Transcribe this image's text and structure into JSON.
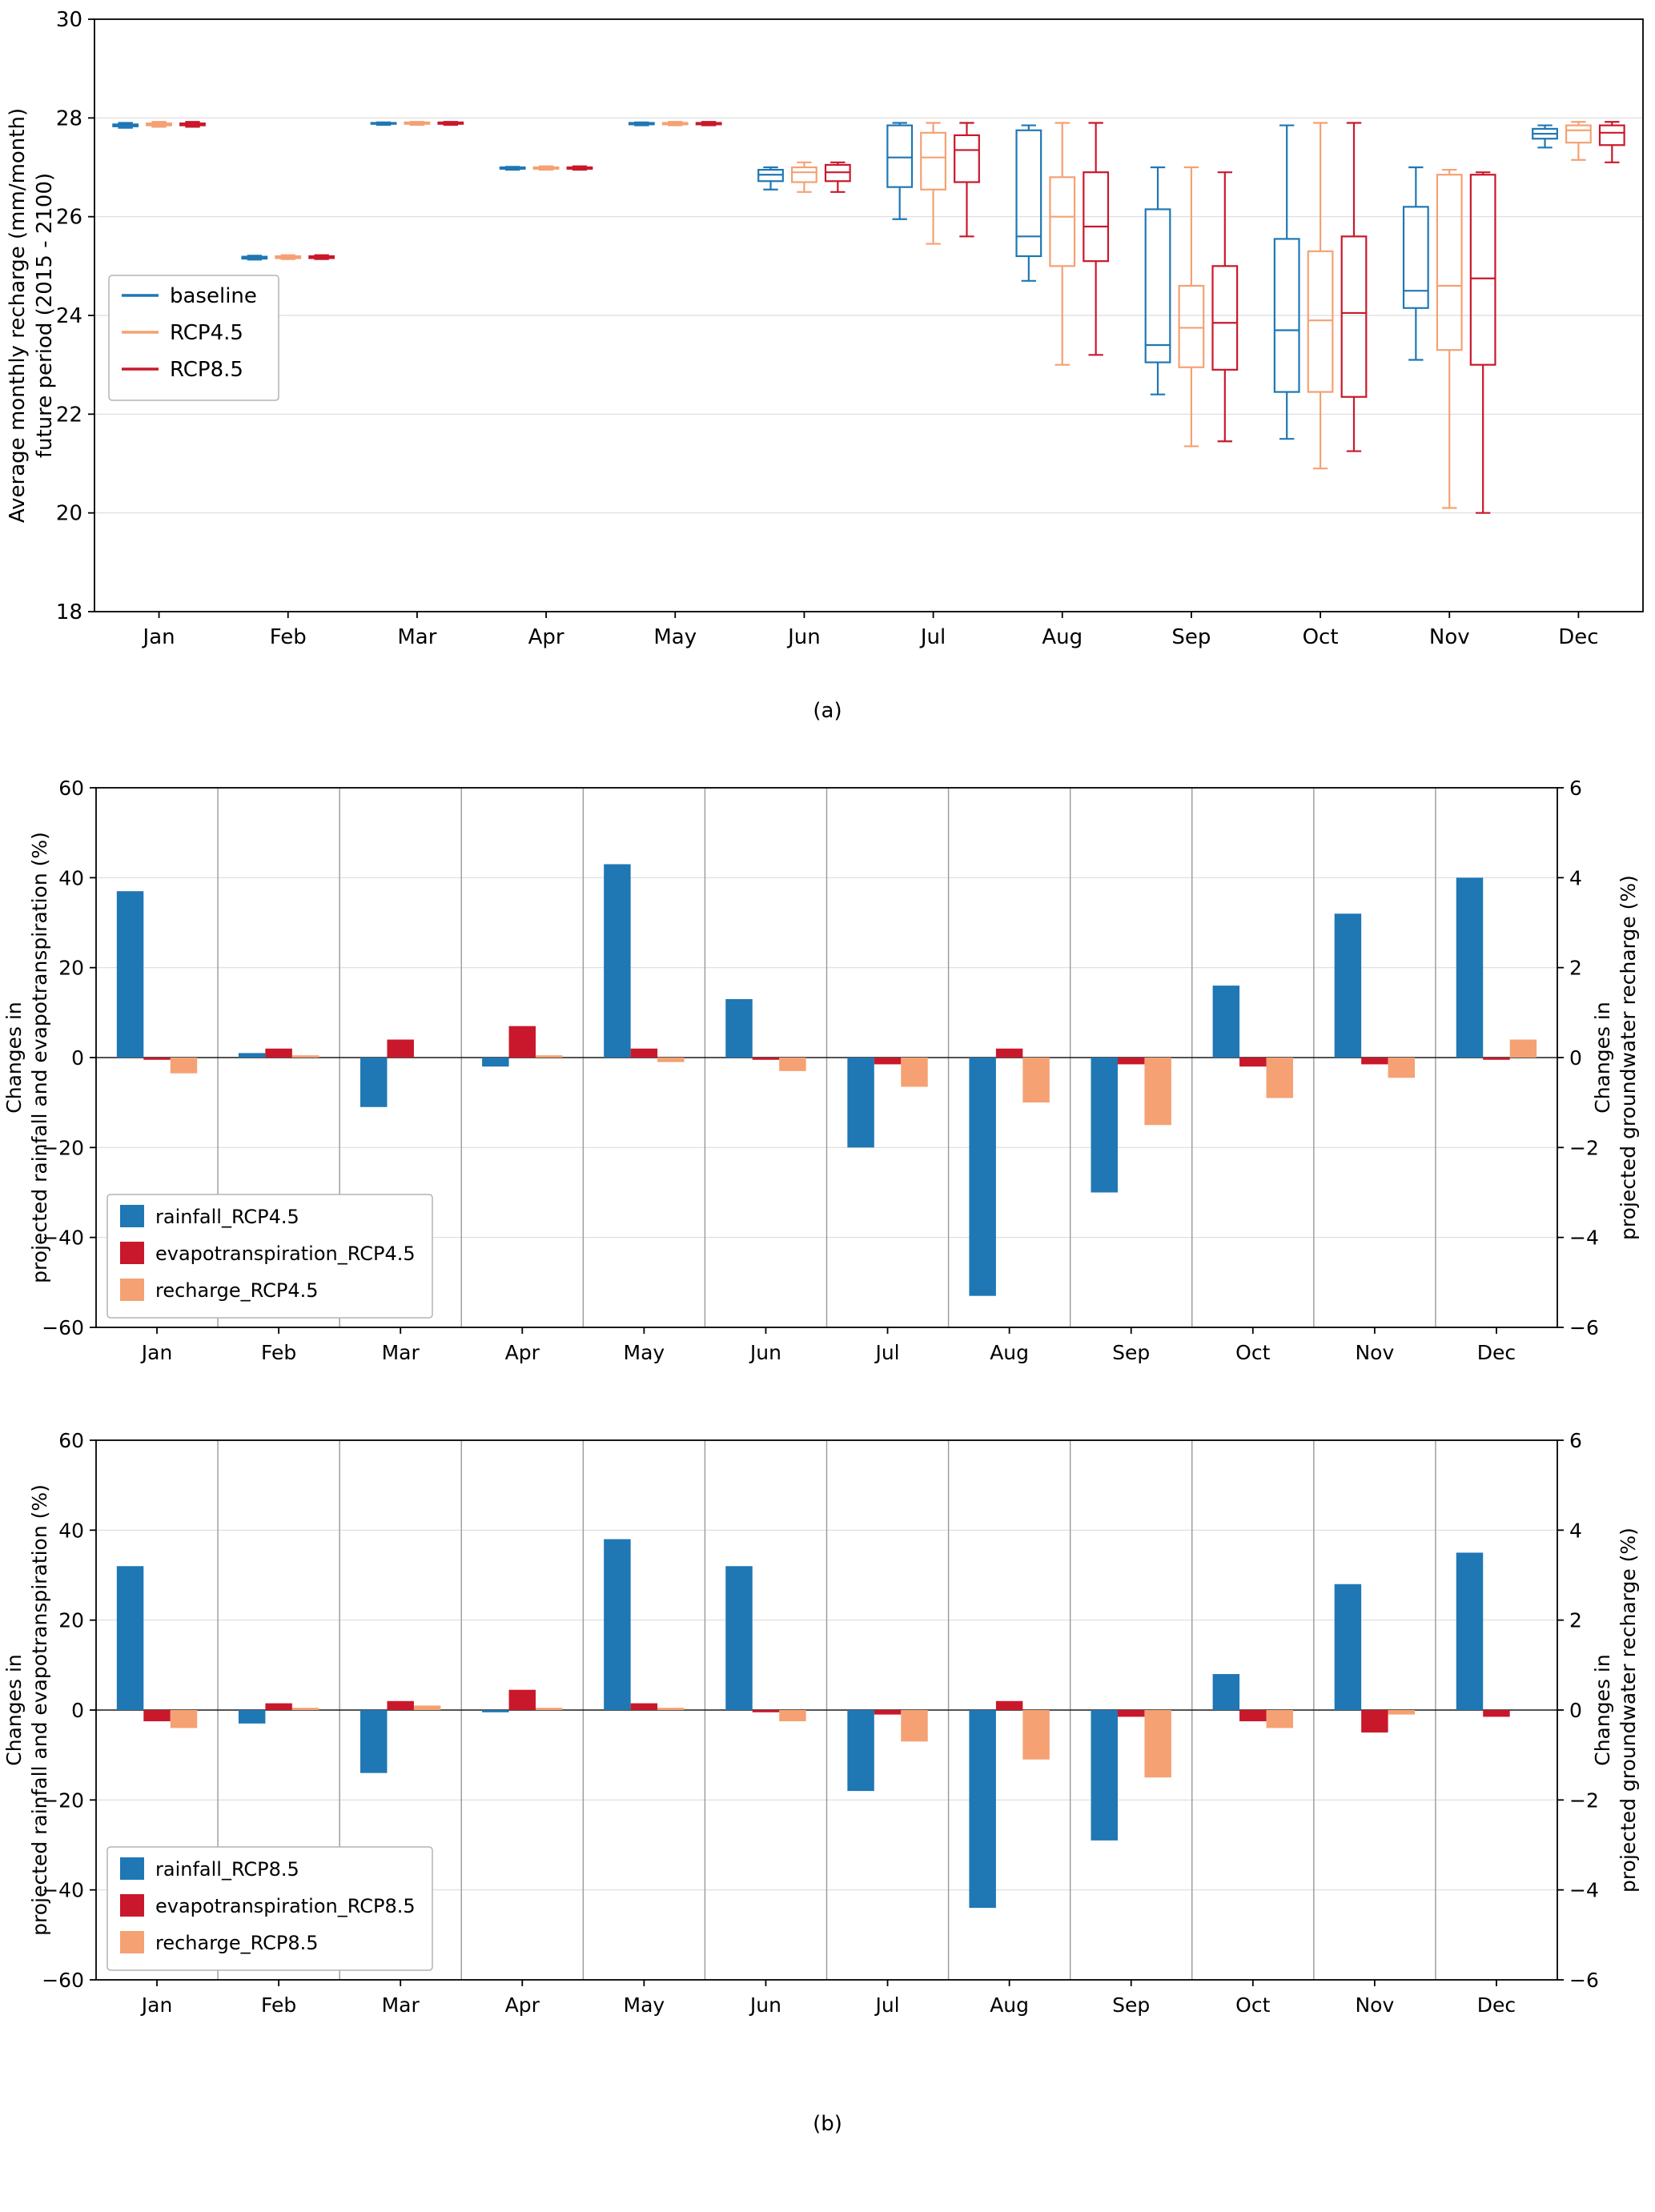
{
  "captions": {
    "a": "(a)",
    "b": "(b)"
  },
  "palette": {
    "blue": "#1f77b4",
    "salmon": "#f5a173",
    "red": "#c9182b",
    "grid_horizontal": "#dcdcdc",
    "grid_vertical": "#999999",
    "axis": "#000000",
    "legend_border": "#b3b3b3"
  },
  "chart_data": [
    {
      "id": "boxplot_monthly_recharge",
      "type": "boxplot",
      "ylabel": "Average monthly recharge (mm/month)\nfuture period (2015 - 2100)",
      "ylim": [
        18,
        30
      ],
      "yticks": [
        18,
        20,
        22,
        24,
        26,
        28,
        30
      ],
      "grid": "horizontal",
      "legend_position": "center-left",
      "categories": [
        "Jan",
        "Feb",
        "Mar",
        "Apr",
        "May",
        "Jun",
        "Jul",
        "Aug",
        "Sep",
        "Oct",
        "Nov",
        "Dec"
      ],
      "boxes_format": [
        "whisker_low",
        "q1",
        "median",
        "q3",
        "whisker_high"
      ],
      "series": [
        {
          "name": "baseline",
          "color": "#1f77b4",
          "boxes": [
            [
              27.8,
              27.83,
              27.85,
              27.87,
              27.9
            ],
            [
              25.13,
              25.15,
              25.17,
              25.19,
              25.21
            ],
            [
              27.86,
              27.88,
              27.89,
              27.9,
              27.91
            ],
            [
              26.95,
              26.97,
              26.98,
              27.0,
              27.01
            ],
            [
              27.85,
              27.87,
              27.88,
              27.9,
              27.91
            ],
            [
              26.55,
              26.72,
              26.85,
              26.95,
              27.0
            ],
            [
              25.95,
              26.6,
              27.2,
              27.85,
              27.9
            ],
            [
              24.7,
              25.2,
              25.6,
              27.75,
              27.85
            ],
            [
              22.4,
              23.05,
              23.4,
              26.15,
              27.0
            ],
            [
              21.5,
              22.45,
              23.7,
              25.55,
              27.85
            ],
            [
              23.1,
              24.15,
              24.5,
              26.2,
              27.0
            ],
            [
              27.4,
              27.58,
              27.68,
              27.78,
              27.85
            ]
          ]
        },
        {
          "name": "RCP4.5",
          "color": "#f5a173",
          "boxes": [
            [
              27.82,
              27.85,
              27.87,
              27.89,
              27.92
            ],
            [
              25.14,
              25.16,
              25.18,
              25.2,
              25.22
            ],
            [
              27.86,
              27.88,
              27.9,
              27.91,
              27.92
            ],
            [
              26.95,
              26.97,
              26.99,
              27.0,
              27.02
            ],
            [
              27.85,
              27.87,
              27.89,
              27.9,
              27.92
            ],
            [
              26.5,
              26.7,
              26.9,
              27.0,
              27.1
            ],
            [
              25.45,
              26.55,
              27.2,
              27.7,
              27.9
            ],
            [
              23.0,
              25.0,
              26.0,
              26.8,
              27.9
            ],
            [
              21.35,
              22.95,
              23.75,
              24.6,
              27.0
            ],
            [
              20.9,
              22.45,
              23.9,
              25.3,
              27.9
            ],
            [
              20.1,
              23.3,
              24.6,
              26.85,
              26.95
            ],
            [
              27.15,
              27.5,
              27.75,
              27.85,
              27.92
            ]
          ]
        },
        {
          "name": "RCP8.5",
          "color": "#c9182b",
          "boxes": [
            [
              27.82,
              27.85,
              27.87,
              27.89,
              27.92
            ],
            [
              25.14,
              25.16,
              25.18,
              25.2,
              25.22
            ],
            [
              27.86,
              27.88,
              27.9,
              27.91,
              27.92
            ],
            [
              26.95,
              26.97,
              26.99,
              27.0,
              27.02
            ],
            [
              27.85,
              27.87,
              27.89,
              27.9,
              27.92
            ],
            [
              26.5,
              26.72,
              26.9,
              27.05,
              27.1
            ],
            [
              25.6,
              26.7,
              27.35,
              27.65,
              27.9
            ],
            [
              23.2,
              25.1,
              25.8,
              26.9,
              27.9
            ],
            [
              21.45,
              22.9,
              23.85,
              25.0,
              26.9
            ],
            [
              21.25,
              22.35,
              24.05,
              25.6,
              27.9
            ],
            [
              20.0,
              23.0,
              24.75,
              26.85,
              26.9
            ],
            [
              27.1,
              27.45,
              27.7,
              27.85,
              27.92
            ]
          ]
        }
      ]
    },
    {
      "id": "changes_rcp45",
      "type": "bar",
      "categories": [
        "Jan",
        "Feb",
        "Mar",
        "Apr",
        "May",
        "Jun",
        "Jul",
        "Aug",
        "Sep",
        "Oct",
        "Nov",
        "Dec"
      ],
      "left_ylabel": "Changes in\nprojected rainfall and evapotranspiration (%)",
      "right_ylabel": "Changes in\nprojected groundwater recharge (%)",
      "left_ylim": [
        -60,
        60
      ],
      "right_ylim": [
        -6,
        6
      ],
      "left_yticks": [
        -60,
        -40,
        -20,
        0,
        20,
        40,
        60
      ],
      "right_yticks": [
        -6,
        -4,
        -2,
        0,
        2,
        4,
        6
      ],
      "grid": "vertical-month-separators",
      "legend_position": "lower-left",
      "series": [
        {
          "name": "rainfall_RCP4.5",
          "axis": "left",
          "color": "#1f77b4",
          "values": [
            37,
            1,
            -11,
            -2,
            43,
            13,
            -20,
            -53,
            -30,
            16,
            32,
            40
          ]
        },
        {
          "name": "evapotranspiration_RCP4.5",
          "axis": "left",
          "color": "#c9182b",
          "values": [
            -0.5,
            2,
            4,
            7,
            2,
            -0.5,
            -1.5,
            2,
            -1.5,
            -2,
            -1.5,
            -0.5
          ]
        },
        {
          "name": "recharge_RCP4.5",
          "axis": "right",
          "color": "#f5a173",
          "values": [
            -0.35,
            0.05,
            0,
            0.05,
            -0.1,
            -0.3,
            -0.65,
            -1.0,
            -1.5,
            -0.9,
            -0.45,
            0.4
          ]
        }
      ]
    },
    {
      "id": "changes_rcp85",
      "type": "bar",
      "categories": [
        "Jan",
        "Feb",
        "Mar",
        "Apr",
        "May",
        "Jun",
        "Jul",
        "Aug",
        "Sep",
        "Oct",
        "Nov",
        "Dec"
      ],
      "left_ylabel": "Changes in\nprojected rainfall and evapotranspiration (%)",
      "right_ylabel": "Changes in\nprojected groundwater recharge (%)",
      "left_ylim": [
        -60,
        60
      ],
      "right_ylim": [
        -6,
        6
      ],
      "left_yticks": [
        -60,
        -40,
        -20,
        0,
        20,
        40,
        60
      ],
      "right_yticks": [
        -6,
        -4,
        -2,
        0,
        2,
        4,
        6
      ],
      "grid": "vertical-month-separators",
      "legend_position": "lower-left",
      "series": [
        {
          "name": "rainfall_RCP8.5",
          "axis": "left",
          "color": "#1f77b4",
          "values": [
            32,
            -3,
            -14,
            -0.5,
            38,
            32,
            -18,
            -44,
            -29,
            8,
            28,
            35
          ]
        },
        {
          "name": "evapotranspiration_RCP8.5",
          "axis": "left",
          "color": "#c9182b",
          "values": [
            -2.5,
            1.5,
            2,
            4.5,
            1.5,
            -0.5,
            -1,
            2,
            -1.5,
            -2.5,
            -5,
            -1.5
          ]
        },
        {
          "name": "recharge_RCP8.5",
          "axis": "right",
          "color": "#f5a173",
          "values": [
            -0.4,
            0.05,
            0.1,
            0.05,
            0.05,
            -0.25,
            -0.7,
            -1.1,
            -1.5,
            -0.4,
            -0.1,
            0
          ]
        }
      ]
    }
  ]
}
